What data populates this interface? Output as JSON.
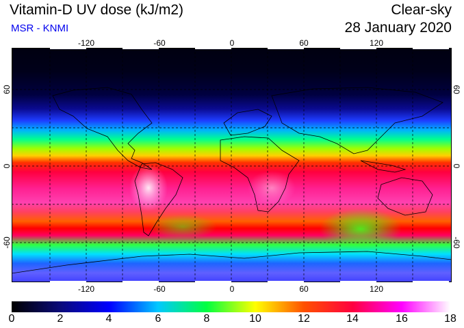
{
  "header": {
    "title": "Vitamin-D UV dose (kJ/m2)",
    "subtitle": "MSR - KNMI",
    "product": "Clear-sky",
    "date": "28 January 2020"
  },
  "map": {
    "longitude_ticks": [
      "-120",
      "-60",
      "0",
      "60",
      "120"
    ],
    "latitude_ticks_left": [
      "60",
      "0",
      "-60"
    ],
    "latitude_ticks_right": [
      "60",
      "0",
      "-60"
    ],
    "colors": {
      "polar_night": "#000010",
      "land_outline": "#000000",
      "grid": "#000000"
    }
  },
  "colorbar": {
    "labels": [
      "0",
      "2",
      "4",
      "6",
      "8",
      "10",
      "12",
      "14",
      "16",
      "18"
    ],
    "min": 0,
    "max": 18,
    "stops": [
      "#000000",
      "#0a0a7a",
      "#0000ff",
      "#00c8ff",
      "#00ff40",
      "#ffff00",
      "#ff5000",
      "#ff0040",
      "#ff00ff",
      "#ffffff"
    ]
  }
}
